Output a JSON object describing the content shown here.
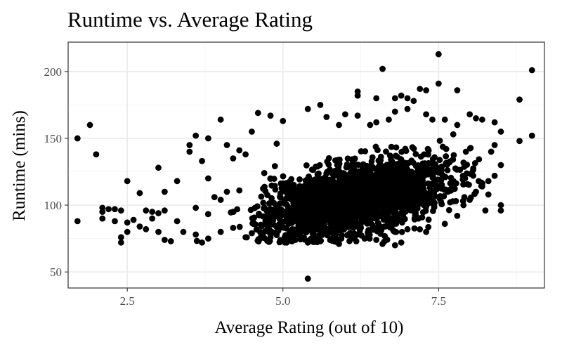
{
  "chart_data": {
    "type": "scatter",
    "title": "Runtime vs. Average Rating",
    "xlabel": "Average Rating (out of 10)",
    "ylabel": "Runtime (mins)",
    "xlim": [
      1.55,
      9.2
    ],
    "ylim": [
      38,
      222
    ],
    "x_ticks": [
      2.5,
      5.0,
      7.5
    ],
    "x_tick_labels": [
      "2.5",
      "5.0",
      "7.5"
    ],
    "y_ticks": [
      50,
      100,
      150,
      200
    ],
    "y_tick_labels": [
      "50",
      "100",
      "150",
      "200"
    ],
    "grid": true,
    "legend": "none",
    "point_color": "#000000",
    "points": [
      {
        "x": 1.7,
        "y": 150
      },
      {
        "x": 1.9,
        "y": 160
      },
      {
        "x": 2.0,
        "y": 138
      },
      {
        "x": 1.7,
        "y": 88
      },
      {
        "x": 5.4,
        "y": 45
      },
      {
        "x": 6.6,
        "y": 202
      },
      {
        "x": 7.5,
        "y": 213
      },
      {
        "x": 9.0,
        "y": 201
      },
      {
        "x": 8.8,
        "y": 179
      },
      {
        "x": 8.8,
        "y": 148
      },
      {
        "x": 9.0,
        "y": 152
      },
      {
        "x": 2.1,
        "y": 98
      },
      {
        "x": 2.1,
        "y": 95
      },
      {
        "x": 2.2,
        "y": 97
      },
      {
        "x": 2.3,
        "y": 97
      },
      {
        "x": 2.4,
        "y": 96
      },
      {
        "x": 2.1,
        "y": 90
      },
      {
        "x": 2.3,
        "y": 88
      },
      {
        "x": 2.5,
        "y": 118
      },
      {
        "x": 2.7,
        "y": 109
      },
      {
        "x": 3.0,
        "y": 128
      },
      {
        "x": 3.1,
        "y": 110
      },
      {
        "x": 3.3,
        "y": 118
      },
      {
        "x": 2.5,
        "y": 87
      },
      {
        "x": 2.5,
        "y": 80
      },
      {
        "x": 2.4,
        "y": 72
      },
      {
        "x": 2.4,
        "y": 76
      },
      {
        "x": 2.6,
        "y": 89
      },
      {
        "x": 2.7,
        "y": 84
      },
      {
        "x": 2.8,
        "y": 82
      },
      {
        "x": 2.9,
        "y": 90
      },
      {
        "x": 3.0,
        "y": 80
      },
      {
        "x": 3.1,
        "y": 74
      },
      {
        "x": 3.2,
        "y": 73
      },
      {
        "x": 2.8,
        "y": 96
      },
      {
        "x": 2.9,
        "y": 95
      },
      {
        "x": 3.0,
        "y": 94
      },
      {
        "x": 3.1,
        "y": 96
      },
      {
        "x": 3.3,
        "y": 88
      },
      {
        "x": 3.4,
        "y": 80
      },
      {
        "x": 3.5,
        "y": 145
      },
      {
        "x": 3.6,
        "y": 152
      },
      {
        "x": 3.5,
        "y": 140
      },
      {
        "x": 3.7,
        "y": 133
      },
      {
        "x": 3.8,
        "y": 120
      },
      {
        "x": 3.9,
        "y": 106
      },
      {
        "x": 3.8,
        "y": 150
      },
      {
        "x": 3.6,
        "y": 98
      },
      {
        "x": 3.6,
        "y": 78
      },
      {
        "x": 3.7,
        "y": 72
      },
      {
        "x": 3.8,
        "y": 75
      },
      {
        "x": 4.0,
        "y": 164
      },
      {
        "x": 4.2,
        "y": 135
      },
      {
        "x": 4.1,
        "y": 145
      },
      {
        "x": 4.3,
        "y": 141
      },
      {
        "x": 4.4,
        "y": 138
      },
      {
        "x": 4.5,
        "y": 155
      },
      {
        "x": 4.6,
        "y": 169
      },
      {
        "x": 4.8,
        "y": 167
      },
      {
        "x": 5.0,
        "y": 163
      },
      {
        "x": 4.9,
        "y": 146
      },
      {
        "x": 4.7,
        "y": 124
      },
      {
        "x": 4.8,
        "y": 120
      },
      {
        "x": 4.3,
        "y": 111
      },
      {
        "x": 4.1,
        "y": 110
      },
      {
        "x": 4.0,
        "y": 104
      },
      {
        "x": 4.2,
        "y": 95
      },
      {
        "x": 4.0,
        "y": 80
      },
      {
        "x": 4.2,
        "y": 83
      },
      {
        "x": 4.4,
        "y": 76
      },
      {
        "x": 4.5,
        "y": 79
      },
      {
        "x": 4.8,
        "y": 76
      },
      {
        "x": 5.1,
        "y": 77
      },
      {
        "x": 5.2,
        "y": 74
      },
      {
        "x": 5.4,
        "y": 72
      },
      {
        "x": 5.6,
        "y": 73
      },
      {
        "x": 5.9,
        "y": 71
      },
      {
        "x": 6.5,
        "y": 74
      },
      {
        "x": 6.6,
        "y": 71
      },
      {
        "x": 6.8,
        "y": 70
      },
      {
        "x": 6.9,
        "y": 72
      },
      {
        "x": 6.2,
        "y": 185
      },
      {
        "x": 6.2,
        "y": 182
      },
      {
        "x": 6.5,
        "y": 180
      },
      {
        "x": 6.8,
        "y": 180
      },
      {
        "x": 6.9,
        "y": 182
      },
      {
        "x": 7.0,
        "y": 180
      },
      {
        "x": 7.1,
        "y": 178
      },
      {
        "x": 7.2,
        "y": 187
      },
      {
        "x": 7.3,
        "y": 186
      },
      {
        "x": 7.5,
        "y": 191
      },
      {
        "x": 7.8,
        "y": 186
      },
      {
        "x": 5.4,
        "y": 172
      },
      {
        "x": 5.6,
        "y": 175
      },
      {
        "x": 5.7,
        "y": 166
      },
      {
        "x": 5.9,
        "y": 160
      },
      {
        "x": 6.0,
        "y": 168
      },
      {
        "x": 6.2,
        "y": 167
      },
      {
        "x": 6.4,
        "y": 160
      },
      {
        "x": 6.5,
        "y": 162
      },
      {
        "x": 6.7,
        "y": 164
      },
      {
        "x": 6.8,
        "y": 170
      },
      {
        "x": 7.0,
        "y": 172
      },
      {
        "x": 7.3,
        "y": 168
      },
      {
        "x": 7.4,
        "y": 164
      },
      {
        "x": 7.6,
        "y": 164
      },
      {
        "x": 7.8,
        "y": 160
      },
      {
        "x": 8.0,
        "y": 168
      },
      {
        "x": 8.1,
        "y": 165
      },
      {
        "x": 8.2,
        "y": 164
      },
      {
        "x": 8.4,
        "y": 162
      },
      {
        "x": 8.5,
        "y": 155
      },
      {
        "x": 8.4,
        "y": 145
      },
      {
        "x": 8.5,
        "y": 130
      },
      {
        "x": 8.4,
        "y": 122
      },
      {
        "x": 8.3,
        "y": 118
      },
      {
        "x": 8.2,
        "y": 114
      },
      {
        "x": 8.3,
        "y": 108
      },
      {
        "x": 8.0,
        "y": 104
      },
      {
        "x": 8.1,
        "y": 110
      },
      {
        "x": 7.9,
        "y": 100
      },
      {
        "x": 7.8,
        "y": 92
      },
      {
        "x": 7.6,
        "y": 86
      },
      {
        "x": 7.3,
        "y": 80
      },
      {
        "x": 7.0,
        "y": 82
      },
      {
        "x": 6.8,
        "y": 80
      },
      {
        "x": 8.5,
        "y": 100
      },
      {
        "x": 8.5,
        "y": 96
      }
    ]
  }
}
